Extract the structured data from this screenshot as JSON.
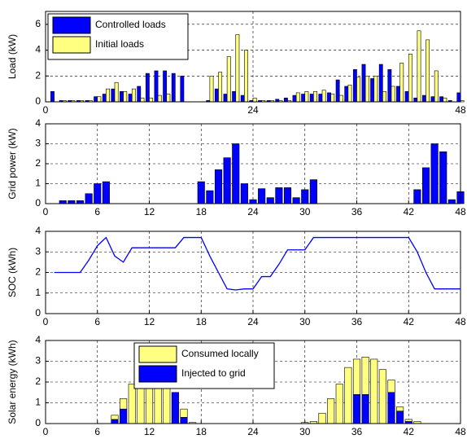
{
  "chart_data": [
    {
      "type": "bar",
      "ylabel": "Load (kW)",
      "legend": "upper left",
      "grid": true,
      "x": [
        1,
        2,
        3,
        4,
        5,
        6,
        7,
        8,
        9,
        10,
        11,
        12,
        13,
        14,
        15,
        16,
        17,
        18,
        19,
        20,
        21,
        22,
        23,
        24,
        25,
        26,
        27,
        28,
        29,
        30,
        31,
        32,
        33,
        34,
        35,
        36,
        37,
        38,
        39,
        40,
        41,
        42,
        43,
        44,
        45,
        46,
        47,
        48
      ],
      "series": [
        {
          "name": "Controlled loads",
          "color": "#0000ff",
          "values": [
            0.8,
            0.1,
            0.1,
            0.1,
            0.1,
            0.4,
            0.6,
            1.0,
            0.8,
            0.6,
            1.2,
            2.2,
            2.4,
            2.4,
            2.2,
            2.0,
            0,
            0,
            0.1,
            1.0,
            0.6,
            0.8,
            0.5,
            0.1,
            0.1,
            0.1,
            0.2,
            0.3,
            0.5,
            0.6,
            0.6,
            0.6,
            0.7,
            1.7,
            1.2,
            2.5,
            2.9,
            1.8,
            2.9,
            2.5,
            1.2,
            0.8,
            0.3,
            0.5,
            0.4,
            0.4,
            0.1,
            0.7
          ]
        },
        {
          "name": "Initial loads",
          "color": "#ffff80",
          "values": [
            0,
            0.1,
            0.1,
            0.1,
            0.1,
            0.4,
            1.0,
            1.5,
            0.8,
            1.0,
            0.3,
            0.3,
            0.5,
            0.6,
            0,
            0,
            0,
            0,
            2.0,
            2.3,
            3.5,
            5.2,
            4.0,
            0.3,
            0.1,
            0.1,
            0.1,
            0.1,
            0.7,
            0.8,
            0.8,
            0.9,
            0.6,
            0.5,
            1.3,
            1.9,
            2.0,
            2.0,
            0.8,
            1.2,
            3.0,
            3.7,
            5.5,
            4.8,
            2.4,
            0.3,
            0,
            0.1
          ]
        }
      ],
      "xlim": [
        0,
        48
      ],
      "xticks": [
        0,
        24,
        48
      ],
      "ylim": [
        0,
        7
      ],
      "yticks": [
        0,
        2,
        4,
        6
      ]
    },
    {
      "type": "bar",
      "ylabel": "Grid power (kW)",
      "grid": true,
      "x": [
        1,
        2,
        3,
        4,
        5,
        6,
        7,
        8,
        9,
        10,
        11,
        12,
        13,
        14,
        15,
        16,
        17,
        18,
        19,
        20,
        21,
        22,
        23,
        24,
        25,
        26,
        27,
        28,
        29,
        30,
        31,
        32,
        33,
        34,
        35,
        36,
        37,
        38,
        39,
        40,
        41,
        42,
        43,
        44,
        45,
        46,
        47,
        48
      ],
      "series": [
        {
          "color": "#0000ff",
          "values": [
            0,
            0.15,
            0.15,
            0.15,
            0.5,
            1.0,
            1.1,
            0,
            0,
            0,
            0,
            0,
            0,
            0,
            0,
            0,
            0,
            1.1,
            0.65,
            1.7,
            2.3,
            3.0,
            1.0,
            0.2,
            0.75,
            0.3,
            0.8,
            0.8,
            0.3,
            0.7,
            1.2,
            0,
            0,
            0,
            0,
            0,
            0,
            0,
            0,
            0,
            0,
            0,
            0.7,
            1.8,
            3.0,
            2.6,
            0.2,
            0.6
          ]
        }
      ],
      "xlim": [
        0,
        48
      ],
      "xticks": [
        0,
        6,
        12,
        18,
        24,
        30,
        36,
        42,
        48
      ],
      "ylim": [
        0,
        4
      ],
      "yticks": [
        0,
        1,
        2,
        3,
        4
      ]
    },
    {
      "type": "line",
      "ylabel": "SOC (kWh)",
      "grid": true,
      "x": [
        1,
        2,
        3,
        4,
        5,
        6,
        7,
        8,
        9,
        10,
        11,
        12,
        13,
        14,
        15,
        16,
        17,
        18,
        19,
        20,
        21,
        22,
        23,
        24,
        25,
        26,
        27,
        28,
        29,
        30,
        31,
        32,
        33,
        34,
        35,
        36,
        37,
        38,
        39,
        40,
        41,
        42,
        43,
        44,
        45,
        46,
        47,
        48
      ],
      "series": [
        {
          "color": "#0000ff",
          "values": [
            2.0,
            2.0,
            2.0,
            2.0,
            2.6,
            3.3,
            3.7,
            2.8,
            2.5,
            3.2,
            3.2,
            3.2,
            3.2,
            3.2,
            3.2,
            3.7,
            3.7,
            3.7,
            2.8,
            2.0,
            1.2,
            1.15,
            1.2,
            1.2,
            1.8,
            1.8,
            2.4,
            3.1,
            3.1,
            3.1,
            3.7,
            3.7,
            3.7,
            3.7,
            3.7,
            3.7,
            3.7,
            3.7,
            3.7,
            3.7,
            3.7,
            3.7,
            3.0,
            2.0,
            1.2,
            1.2,
            1.2,
            1.2
          ]
        }
      ],
      "xlim": [
        0,
        48
      ],
      "xticks": [
        0,
        6,
        12,
        18,
        24,
        30,
        36,
        42,
        48
      ],
      "ylim": [
        0,
        4
      ],
      "yticks": [
        0,
        1,
        2,
        3,
        4
      ]
    },
    {
      "type": "stacked_bar",
      "ylabel": "Solar energy (kWh)",
      "legend": "upper center",
      "grid": true,
      "x": [
        1,
        2,
        3,
        4,
        5,
        6,
        7,
        8,
        9,
        10,
        11,
        12,
        13,
        14,
        15,
        16,
        17,
        18,
        19,
        20,
        21,
        22,
        23,
        24,
        25,
        26,
        27,
        28,
        29,
        30,
        31,
        32,
        33,
        34,
        35,
        36,
        37,
        38,
        39,
        40,
        41,
        42,
        43,
        44,
        45,
        46,
        47,
        48
      ],
      "series": [
        {
          "name": "Consumed locally",
          "color": "#ffff80",
          "values": [
            0,
            0,
            0,
            0,
            0,
            0,
            0,
            0.2,
            0.5,
            1.9,
            2.3,
            2.5,
            2.4,
            2.1,
            0,
            0.4,
            0.05,
            0,
            0,
            0,
            0,
            0,
            0,
            0,
            0,
            0,
            0,
            0,
            0,
            0.05,
            0.1,
            0.5,
            1.2,
            1.9,
            2.7,
            1.7,
            1.8,
            3.1,
            2.6,
            0.6,
            0.2,
            0.1,
            0.1,
            0,
            0,
            0,
            0,
            0
          ]
        },
        {
          "name": "Injected to grid",
          "color": "#0000ff",
          "values": [
            0,
            0,
            0,
            0,
            0,
            0,
            0,
            0.2,
            0.7,
            0,
            0,
            0,
            0,
            0,
            1.5,
            0.3,
            0,
            0,
            0,
            0,
            0,
            0,
            0,
            0,
            0,
            0,
            0,
            0,
            0,
            0,
            0,
            0,
            0,
            0,
            0,
            1.4,
            1.4,
            0,
            0,
            1.5,
            0.6,
            0.1,
            0,
            0,
            0,
            0,
            0,
            0
          ]
        }
      ],
      "xlim": [
        0,
        48
      ],
      "xticks": [
        0,
        6,
        12,
        18,
        24,
        30,
        36,
        42,
        48
      ],
      "ylim": [
        0,
        4
      ],
      "yticks": [
        0,
        1,
        2,
        3,
        4
      ]
    }
  ]
}
